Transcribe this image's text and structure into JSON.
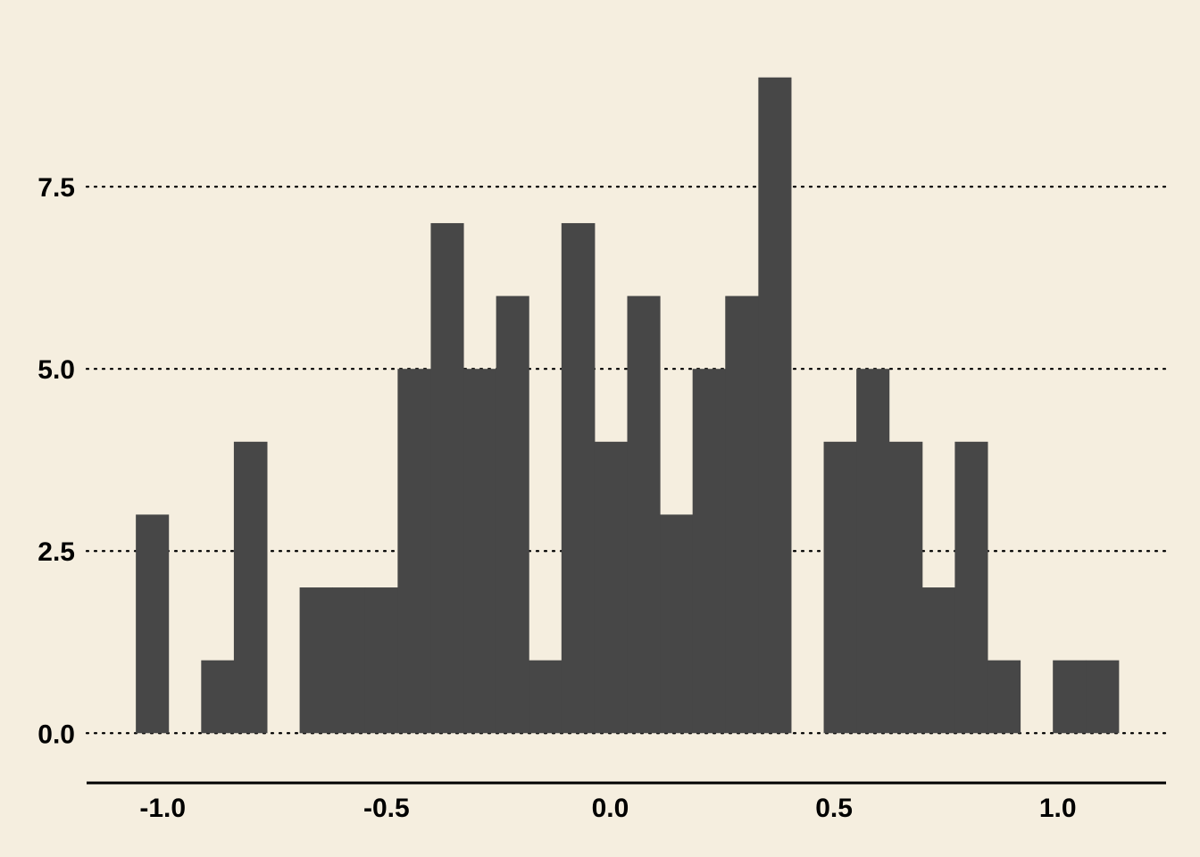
{
  "chart_data": {
    "type": "bar",
    "title": "",
    "xlabel": "",
    "ylabel": "",
    "xlim": [
      -1.17,
      1.24
    ],
    "ylim": [
      -0.45,
      9.45
    ],
    "bin_width": 0.0732,
    "x_ticks": [
      -1.0,
      -0.5,
      0.0,
      0.5,
      1.0
    ],
    "x_tick_labels": [
      "-1.0",
      "-0.5",
      "0.0",
      "0.5",
      "1.0"
    ],
    "y_ticks": [
      0.0,
      2.5,
      5.0,
      7.5
    ],
    "y_tick_labels": [
      "0.0",
      "2.5",
      "5.0",
      "7.5"
    ],
    "grid": "horizontal dotted",
    "bar_color": "#474747",
    "background": "#F5EEDF",
    "bins": [
      {
        "x0": -1.06,
        "x1": -0.987,
        "count": 3
      },
      {
        "x0": -0.987,
        "x1": -0.914,
        "count": 0
      },
      {
        "x0": -0.914,
        "x1": -0.841,
        "count": 1
      },
      {
        "x0": -0.841,
        "x1": -0.767,
        "count": 4
      },
      {
        "x0": -0.767,
        "x1": -0.694,
        "count": 0
      },
      {
        "x0": -0.694,
        "x1": -0.621,
        "count": 2
      },
      {
        "x0": -0.621,
        "x1": -0.548,
        "count": 2
      },
      {
        "x0": -0.548,
        "x1": -0.475,
        "count": 2
      },
      {
        "x0": -0.475,
        "x1": -0.401,
        "count": 5
      },
      {
        "x0": -0.401,
        "x1": -0.328,
        "count": 7
      },
      {
        "x0": -0.328,
        "x1": -0.255,
        "count": 5
      },
      {
        "x0": -0.255,
        "x1": -0.182,
        "count": 6
      },
      {
        "x0": -0.182,
        "x1": -0.109,
        "count": 1
      },
      {
        "x0": -0.109,
        "x1": -0.035,
        "count": 7
      },
      {
        "x0": -0.035,
        "x1": 0.038,
        "count": 4
      },
      {
        "x0": 0.038,
        "x1": 0.111,
        "count": 6
      },
      {
        "x0": 0.111,
        "x1": 0.184,
        "count": 3
      },
      {
        "x0": 0.184,
        "x1": 0.257,
        "count": 5
      },
      {
        "x0": 0.257,
        "x1": 0.331,
        "count": 6
      },
      {
        "x0": 0.331,
        "x1": 0.404,
        "count": 9
      },
      {
        "x0": 0.404,
        "x1": 0.477,
        "count": 0
      },
      {
        "x0": 0.477,
        "x1": 0.55,
        "count": 4
      },
      {
        "x0": 0.55,
        "x1": 0.623,
        "count": 5
      },
      {
        "x0": 0.623,
        "x1": 0.697,
        "count": 4
      },
      {
        "x0": 0.697,
        "x1": 0.77,
        "count": 2
      },
      {
        "x0": 0.77,
        "x1": 0.843,
        "count": 4
      },
      {
        "x0": 0.843,
        "x1": 0.916,
        "count": 1
      },
      {
        "x0": 0.916,
        "x1": 0.989,
        "count": 0
      },
      {
        "x0": 0.989,
        "x1": 1.063,
        "count": 1
      },
      {
        "x0": 1.063,
        "x1": 1.136,
        "count": 1
      }
    ]
  }
}
